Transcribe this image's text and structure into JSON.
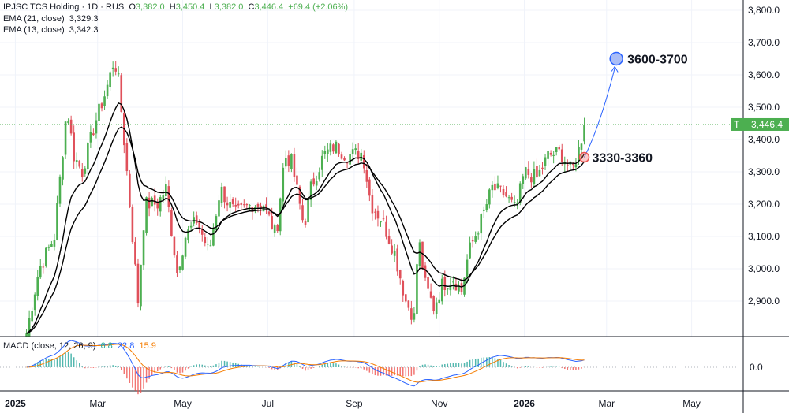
{
  "header": {
    "symbol": "IPJSC TCS Holding · 1D · RUS",
    "o_label": "O",
    "o": "3,382.0",
    "h_label": "H",
    "h": "3,450.4",
    "l_label": "L",
    "l": "3,382.0",
    "c_label": "C",
    "c": "3,446.4",
    "change": "+69.4 (+2.06%)"
  },
  "indicators": [
    {
      "label": "EMA (21, close)",
      "value": "3,329.3"
    },
    {
      "label": "EMA (13, close)",
      "value": "3,342.3"
    }
  ],
  "macd": {
    "label": "MACD (close, 12, 26, 9)",
    "hist": "6.8",
    "macd": "22.8",
    "signal": "15.9",
    "zero_label": "0.0"
  },
  "price_tag": {
    "badge": "T",
    "value": "3,446.4"
  },
  "annotations": {
    "target": "3600-3700",
    "entry": "3330-3360"
  },
  "colors": {
    "up": "#4caf50",
    "down": "#e0505a",
    "ema": "#000000",
    "macd": "#2962ff",
    "signal": "#f57c00",
    "hist_up": "#26a69a",
    "hist_down": "#ef5350",
    "target": "#2962ff"
  },
  "chart_data": {
    "type": "candlestick",
    "title": "IPJSC TCS Holding · 1D · RUS",
    "y_ticks": [
      "3,800.0",
      "3,700.0",
      "3,600.0",
      "3,500.0",
      "3,400.0",
      "3,300.0",
      "3,200.0",
      "3,100.0",
      "3,000.0",
      "2,900.0"
    ],
    "y_tick_values": [
      3800,
      3700,
      3600,
      3500,
      3400,
      3300,
      3200,
      3100,
      3000,
      2900
    ],
    "x_ticks": [
      {
        "label": "2025",
        "day": 0,
        "bold": true
      },
      {
        "label": "Mar",
        "day": 59
      },
      {
        "label": "May",
        "day": 120
      },
      {
        "label": "Jul",
        "day": 181
      },
      {
        "label": "Sep",
        "day": 243
      },
      {
        "label": "Nov",
        "day": 304
      },
      {
        "label": "2026",
        "day": 365,
        "bold": true
      },
      {
        "label": "Mar",
        "day": 424
      },
      {
        "label": "May",
        "day": 485
      }
    ],
    "ylim": [
      2820,
      3830
    ],
    "xlim_days": [
      -11,
      522
    ],
    "close_path_day_price": [
      [
        8,
        2800
      ],
      [
        17,
        3000
      ],
      [
        28,
        3100
      ],
      [
        37,
        3500
      ],
      [
        42,
        3350
      ],
      [
        48,
        3300
      ],
      [
        57,
        3450
      ],
      [
        65,
        3550
      ],
      [
        71,
        3650
      ],
      [
        74,
        3580
      ],
      [
        79,
        3350
      ],
      [
        85,
        3050
      ],
      [
        88,
        2900
      ],
      [
        93,
        3200
      ],
      [
        102,
        3200
      ],
      [
        108,
        3250
      ],
      [
        116,
        2990
      ],
      [
        122,
        3100
      ],
      [
        130,
        3150
      ],
      [
        139,
        3050
      ],
      [
        147,
        3250
      ],
      [
        153,
        3200
      ],
      [
        158,
        3170
      ],
      [
        170,
        3200
      ],
      [
        178,
        3200
      ],
      [
        187,
        3100
      ],
      [
        193,
        3350
      ],
      [
        198,
        3330
      ],
      [
        207,
        3130
      ],
      [
        212,
        3250
      ],
      [
        221,
        3350
      ],
      [
        229,
        3380
      ],
      [
        238,
        3350
      ],
      [
        249,
        3360
      ],
      [
        255,
        3200
      ],
      [
        263,
        3150
      ],
      [
        272,
        3050
      ],
      [
        280,
        2900
      ],
      [
        286,
        2850
      ],
      [
        289,
        3100
      ],
      [
        294,
        2950
      ],
      [
        300,
        2880
      ],
      [
        306,
        2950
      ],
      [
        314,
        2970
      ],
      [
        320,
        2930
      ],
      [
        325,
        3050
      ],
      [
        334,
        3150
      ],
      [
        342,
        3250
      ],
      [
        351,
        3230
      ],
      [
        359,
        3180
      ],
      [
        365,
        3300
      ],
      [
        374,
        3280
      ],
      [
        382,
        3350
      ],
      [
        391,
        3360
      ],
      [
        399,
        3300
      ],
      [
        405,
        3382
      ],
      [
        408,
        3446.4
      ]
    ],
    "entry_point": {
      "day": 408,
      "price": 3345
    },
    "target_point": {
      "day": 431,
      "price": 3650
    },
    "last_price": 3446.4
  }
}
